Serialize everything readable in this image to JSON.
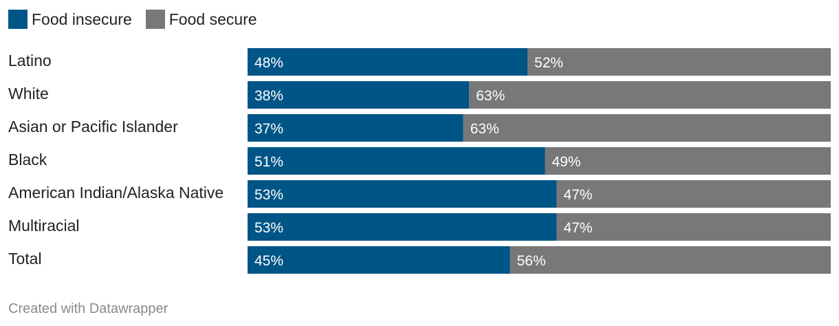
{
  "legend": [
    {
      "label": "Food insecure",
      "color": "#005587"
    },
    {
      "label": "Food secure",
      "color": "#787878"
    }
  ],
  "chart_data": {
    "type": "bar",
    "orientation": "horizontal",
    "stacked": true,
    "categories": [
      "Latino",
      "White",
      "Asian or Pacific Islander",
      "Black",
      "American Indian/Alaska Native",
      "Multiracial",
      "Total"
    ],
    "series": [
      {
        "name": "Food insecure",
        "color": "#005587",
        "values": [
          48,
          38,
          37,
          51,
          53,
          53,
          45
        ],
        "labels": [
          "48%",
          "38%",
          "37%",
          "51%",
          "53%",
          "53%",
          "45%"
        ]
      },
      {
        "name": "Food secure",
        "color": "#787878",
        "values": [
          52,
          63,
          63,
          49,
          47,
          47,
          56
        ],
        "labels": [
          "52%",
          "63%",
          "63%",
          "49%",
          "47%",
          "47%",
          "56%"
        ]
      }
    ],
    "xlim": [
      0,
      100
    ],
    "legend_position": "top-left",
    "grid": false
  },
  "footer": {
    "credit": "Created with Datawrapper"
  }
}
